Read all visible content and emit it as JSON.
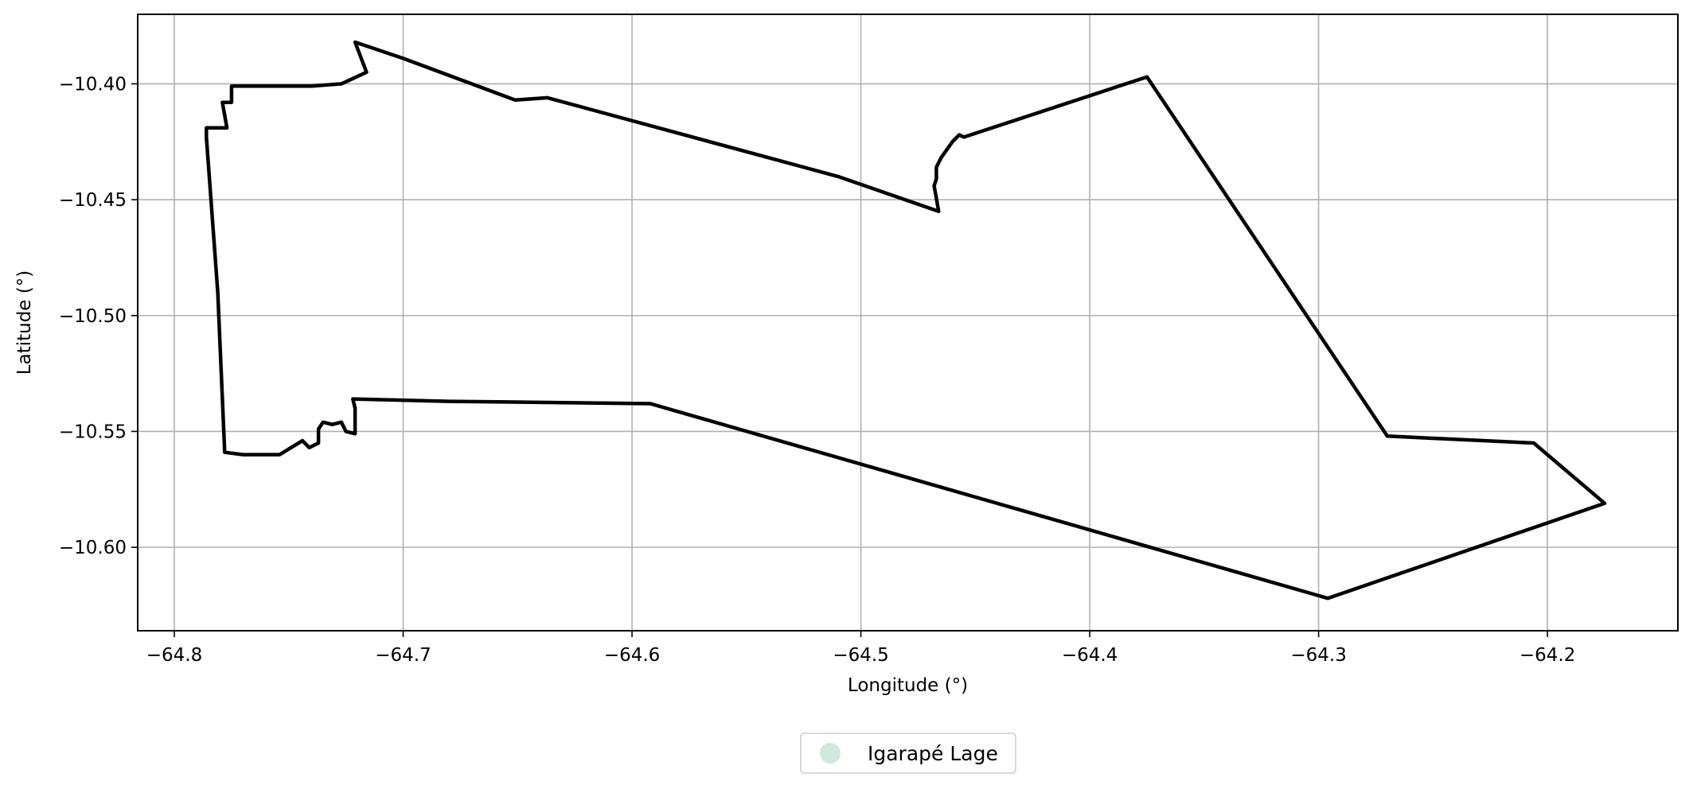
{
  "chart_data": {
    "type": "map",
    "xlabel": "Longitude (°)",
    "ylabel": "Latitude (°)",
    "xlim": [
      -64.816,
      -64.143
    ],
    "ylim": [
      -10.636,
      -10.37
    ],
    "xticks": [
      -64.8,
      -64.7,
      -64.6,
      -64.5,
      -64.4,
      -64.3,
      -64.2
    ],
    "yticks": [
      -10.4,
      -10.45,
      -10.5,
      -10.55,
      -10.6
    ],
    "xtick_labels": [
      "−64.8",
      "−64.7",
      "−64.6",
      "−64.5",
      "−64.4",
      "−64.3",
      "−64.2"
    ],
    "ytick_labels": [
      "−10.40",
      "−10.45",
      "−10.50",
      "−10.55",
      "−10.60"
    ],
    "grid": true,
    "legend_position": "bottom-center",
    "series": [
      {
        "name": "Igarapé Lage",
        "marker_color": "#cfe8dc",
        "boundary_color": "#000000",
        "coordinates": [
          [
            -64.721,
            -10.382
          ],
          [
            -64.716,
            -10.395
          ],
          [
            -64.727,
            -10.4
          ],
          [
            -64.74,
            -10.401
          ],
          [
            -64.76,
            -10.401
          ],
          [
            -64.775,
            -10.401
          ],
          [
            -64.775,
            -10.408
          ],
          [
            -64.779,
            -10.408
          ],
          [
            -64.777,
            -10.419
          ],
          [
            -64.786,
            -10.419
          ],
          [
            -64.786,
            -10.423
          ],
          [
            -64.781,
            -10.49
          ],
          [
            -64.778,
            -10.559
          ],
          [
            -64.77,
            -10.56
          ],
          [
            -64.754,
            -10.56
          ],
          [
            -64.744,
            -10.554
          ],
          [
            -64.741,
            -10.557
          ],
          [
            -64.737,
            -10.555
          ],
          [
            -64.737,
            -10.549
          ],
          [
            -64.735,
            -10.546
          ],
          [
            -64.731,
            -10.547
          ],
          [
            -64.727,
            -10.546
          ],
          [
            -64.725,
            -10.55
          ],
          [
            -64.721,
            -10.551
          ],
          [
            -64.721,
            -10.54
          ],
          [
            -64.722,
            -10.536
          ],
          [
            -64.68,
            -10.537
          ],
          [
            -64.592,
            -10.538
          ],
          [
            -64.296,
            -10.622
          ],
          [
            -64.175,
            -10.581
          ],
          [
            -64.206,
            -10.555
          ],
          [
            -64.27,
            -10.552
          ],
          [
            -64.375,
            -10.397
          ],
          [
            -64.455,
            -10.423
          ],
          [
            -64.457,
            -10.422
          ],
          [
            -64.46,
            -10.425
          ],
          [
            -64.465,
            -10.432
          ],
          [
            -64.467,
            -10.436
          ],
          [
            -64.467,
            -10.441
          ],
          [
            -64.468,
            -10.444
          ],
          [
            -64.466,
            -10.455
          ],
          [
            -64.51,
            -10.44
          ],
          [
            -64.637,
            -10.406
          ],
          [
            -64.651,
            -10.407
          ],
          [
            -64.7,
            -10.389
          ],
          [
            -64.721,
            -10.382
          ]
        ]
      }
    ]
  }
}
